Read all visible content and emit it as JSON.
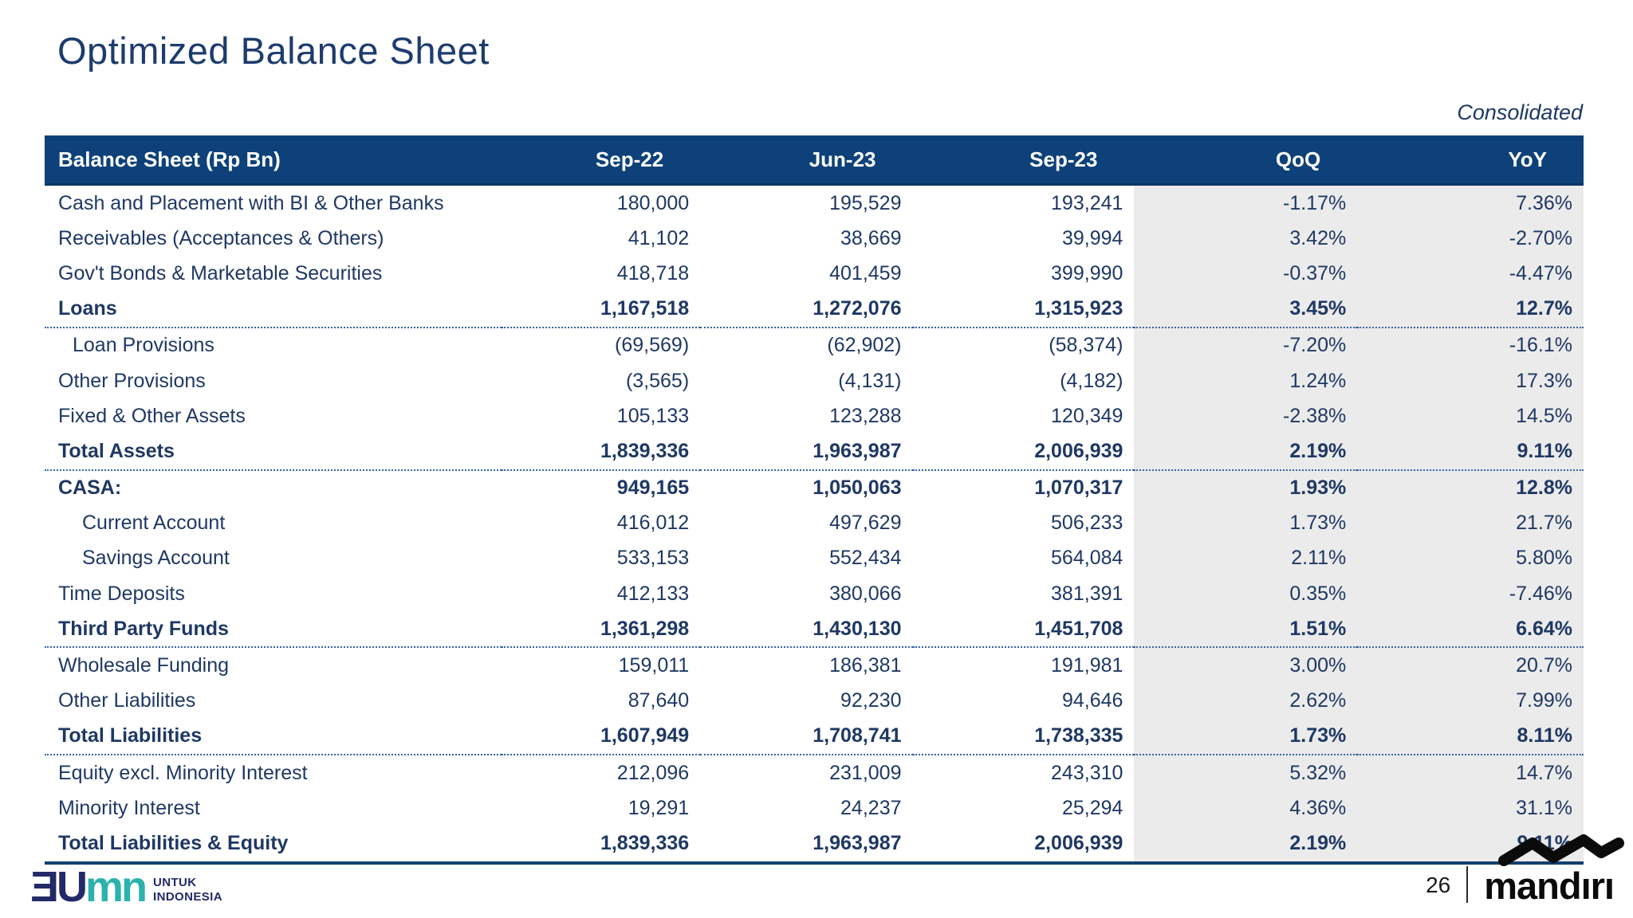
{
  "slide": {
    "title": "Optimized Balance Sheet",
    "note": "Consolidated",
    "page_number": "26"
  },
  "table": {
    "columns": [
      "Balance Sheet (Rp Bn)",
      "Sep-22",
      "Jun-23",
      "Sep-23",
      "QoQ",
      "YoY"
    ],
    "rows": [
      {
        "label": "Cash and Placement with BI & Other Banks",
        "values": [
          "180,000",
          "195,529",
          "193,241",
          "-1.17%",
          "7.36%"
        ],
        "bold": false,
        "indent": 0,
        "separator": "none"
      },
      {
        "label": "Receivables (Acceptances & Others)",
        "values": [
          "41,102",
          "38,669",
          "39,994",
          "3.42%",
          "-2.70%"
        ],
        "bold": false,
        "indent": 0,
        "separator": "none"
      },
      {
        "label": "Gov't Bonds & Marketable Securities",
        "values": [
          "418,718",
          "401,459",
          "399,990",
          "-0.37%",
          "-4.47%"
        ],
        "bold": false,
        "indent": 0,
        "separator": "none"
      },
      {
        "label": "Loans",
        "values": [
          "1,167,518",
          "1,272,076",
          "1,315,923",
          "3.45%",
          "12.7%"
        ],
        "bold": true,
        "indent": 0,
        "separator": "dotted"
      },
      {
        "label": "Loan Provisions",
        "values": [
          "(69,569)",
          "(62,902)",
          "(58,374)",
          "-7.20%",
          "-16.1%"
        ],
        "bold": false,
        "indent": 1,
        "separator": "none"
      },
      {
        "label": "Other Provisions",
        "values": [
          "(3,565)",
          "(4,131)",
          "(4,182)",
          "1.24%",
          "17.3%"
        ],
        "bold": false,
        "indent": 0,
        "separator": "none"
      },
      {
        "label": "Fixed & Other Assets",
        "values": [
          "105,133",
          "123,288",
          "120,349",
          "-2.38%",
          "14.5%"
        ],
        "bold": false,
        "indent": 0,
        "separator": "none"
      },
      {
        "label": "Total Assets",
        "values": [
          "1,839,336",
          "1,963,987",
          "2,006,939",
          "2.19%",
          "9.11%"
        ],
        "bold": true,
        "indent": 0,
        "separator": "dotted"
      },
      {
        "label": "CASA:",
        "values": [
          "949,165",
          "1,050,063",
          "1,070,317",
          "1.93%",
          "12.8%"
        ],
        "bold": true,
        "indent": 0,
        "separator": "none"
      },
      {
        "label": "Current Account",
        "values": [
          "416,012",
          "497,629",
          "506,233",
          "1.73%",
          "21.7%"
        ],
        "bold": false,
        "indent": 2,
        "separator": "none"
      },
      {
        "label": "Savings Account",
        "values": [
          "533,153",
          "552,434",
          "564,084",
          "2.11%",
          "5.80%"
        ],
        "bold": false,
        "indent": 2,
        "separator": "none"
      },
      {
        "label": "Time Deposits",
        "values": [
          "412,133",
          "380,066",
          "381,391",
          "0.35%",
          "-7.46%"
        ],
        "bold": false,
        "indent": 0,
        "separator": "none"
      },
      {
        "label": "Third Party Funds",
        "values": [
          "1,361,298",
          "1,430,130",
          "1,451,708",
          "1.51%",
          "6.64%"
        ],
        "bold": true,
        "indent": 0,
        "separator": "dotted"
      },
      {
        "label": "Wholesale Funding",
        "values": [
          "159,011",
          "186,381",
          "191,981",
          "3.00%",
          "20.7%"
        ],
        "bold": false,
        "indent": 0,
        "separator": "none"
      },
      {
        "label": "Other Liabilities",
        "values": [
          "87,640",
          "92,230",
          "94,646",
          "2.62%",
          "7.99%"
        ],
        "bold": false,
        "indent": 0,
        "separator": "none"
      },
      {
        "label": "Total Liabilities",
        "values": [
          "1,607,949",
          "1,708,741",
          "1,738,335",
          "1.73%",
          "8.11%"
        ],
        "bold": true,
        "indent": 0,
        "separator": "dotted"
      },
      {
        "label": "Equity excl. Minority Interest",
        "values": [
          "212,096",
          "231,009",
          "243,310",
          "5.32%",
          "14.7%"
        ],
        "bold": false,
        "indent": 0,
        "separator": "none"
      },
      {
        "label": "Minority Interest",
        "values": [
          "19,291",
          "24,237",
          "25,294",
          "4.36%",
          "31.1%"
        ],
        "bold": false,
        "indent": 0,
        "separator": "none"
      },
      {
        "label": "Total Liabilities & Equity",
        "values": [
          "1,839,336",
          "1,963,987",
          "2,006,939",
          "2.19%",
          "9.11%"
        ],
        "bold": true,
        "indent": 0,
        "separator": "solid"
      }
    ]
  },
  "footer": {
    "bumn": {
      "primary": "ƎU",
      "secondary": "mn",
      "tagline1": "UNTUK",
      "tagline2": "INDONESIA"
    },
    "mandiri_text": "mandırı"
  },
  "colors": {
    "header_bar": "#0e4179",
    "text_navy": "#1f3864",
    "shaded_columns": "#ebebeb",
    "bumn_navy": "#232a68",
    "bumn_teal": "#2cb2ad",
    "mandiri_black": "#0b0b0b"
  }
}
